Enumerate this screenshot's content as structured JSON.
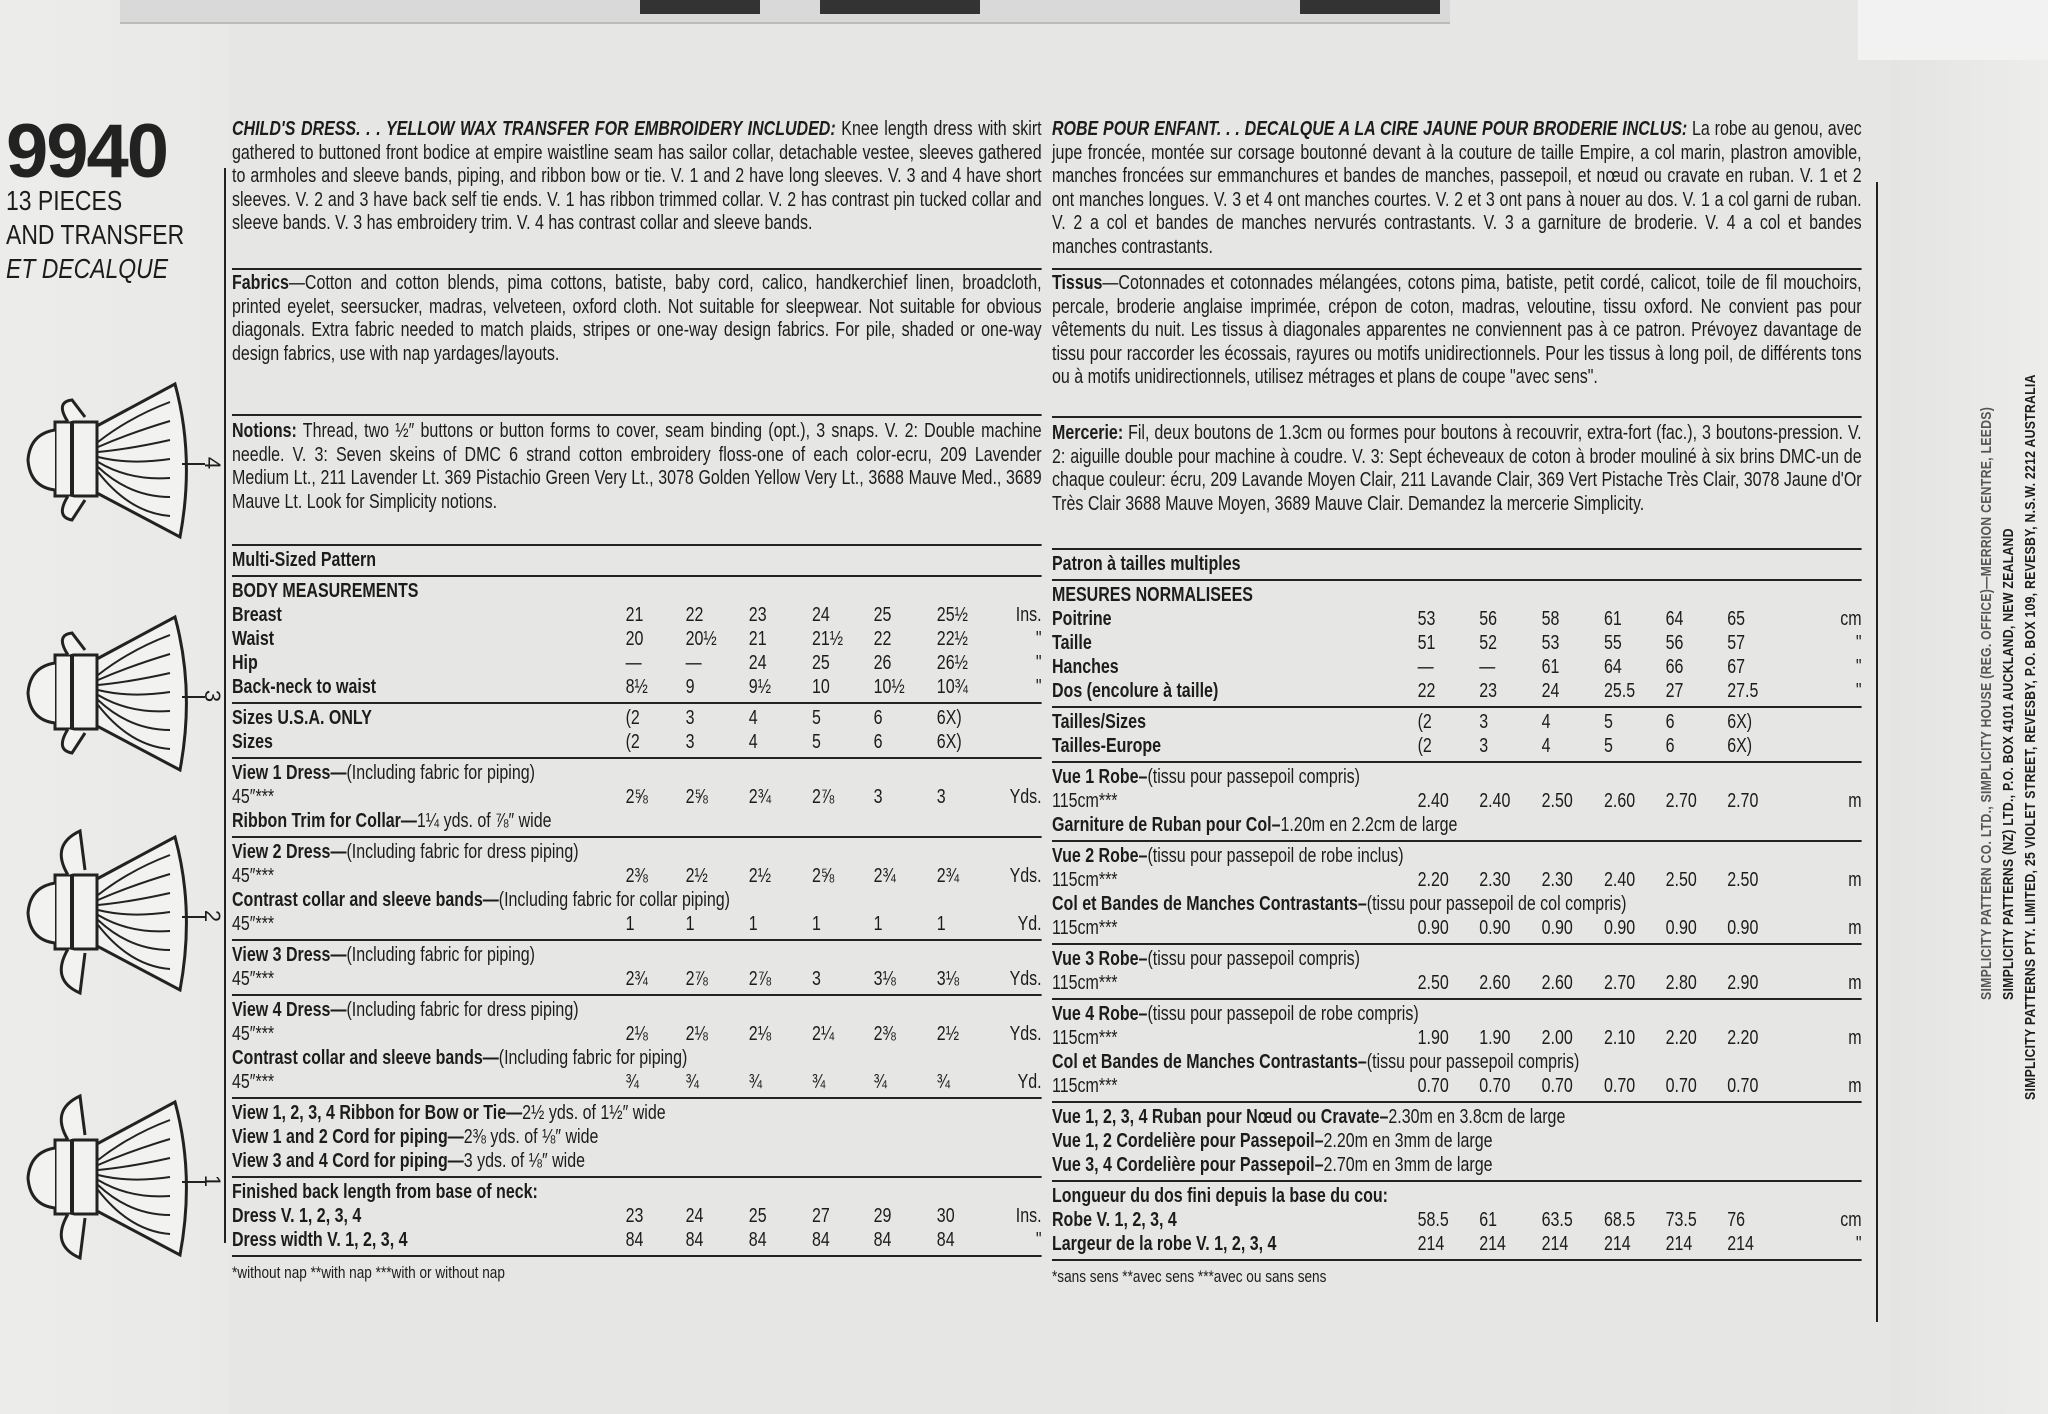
{
  "header": {
    "pattern_number": "9940",
    "pieces": "13 PIECES",
    "transfer": "AND TRANSFER",
    "decalque": "ET DECALQUE"
  },
  "views": [
    "4",
    "3",
    "2",
    "1"
  ],
  "left": {
    "intro": {
      "lead": "CHILD'S DRESS. . . YELLOW WAX TRANSFER FOR EMBROIDERY INCLUDED:",
      "text": " Knee length dress with skirt gathered to buttoned front bodice at empire waistline seam has sailor collar, detachable vestee, sleeves gathered to armholes and sleeve bands, piping, and ribbon bow or tie. V. 1 and 2 have long sleeves. V. 3 and 4 have short sleeves. V. 2 and 3 have back self tie ends. V. 1 has ribbon trimmed collar. V. 2 has contrast pin tucked collar and sleeve bands. V. 3 has embroidery trim. V. 4 has contrast collar and sleeve bands."
    },
    "fabrics": {
      "label": "Fabrics",
      "text": "—Cotton and cotton blends, pima cottons, batiste, baby cord, calico, handkerchief linen, broadcloth, printed eyelet, seersucker, madras, velveteen, oxford cloth. Not suitable for sleepwear. Not suitable for obvious diagonals. Extra fabric needed to match plaids, stripes or one-way design fabrics. For pile, shaded or one-way design fabrics, use with nap yardages/layouts."
    },
    "notions": {
      "label": "Notions:",
      "text": " Thread, two ½″ buttons or button forms to cover, seam binding (opt.), 3 snaps. V. 2: Double machine needle. V. 3: Seven skeins of DMC 6 strand cotton embroidery floss-one of each color-ecru, 209 Lavender Medium Lt., 211 Lavender Lt. 369 Pistachio Green Very Lt., 3078 Golden Yellow Very Lt., 3688 Mauve Med., 3689 Mauve Lt. Look for Simplicity notions."
    },
    "table": {
      "sections": [
        {
          "rows": [
            {
              "label": "Multi-Sized Pattern"
            }
          ]
        },
        {
          "rows": [
            {
              "label": "BODY MEASUREMENTS"
            },
            {
              "label": "Breast",
              "values": [
                "21",
                "22",
                "23",
                "24",
                "25",
                "25½"
              ],
              "unit": "Ins."
            },
            {
              "label": "Waist",
              "values": [
                "20",
                "20½",
                "21",
                "21½",
                "22",
                "22½"
              ],
              "unit": "\""
            },
            {
              "label": "Hip",
              "values": [
                "—",
                "—",
                "24",
                "25",
                "26",
                "26½"
              ],
              "unit": "\""
            },
            {
              "label": "Back-neck to waist",
              "values": [
                "8½",
                "9",
                "9½",
                "10",
                "10½",
                "10¾"
              ],
              "unit": "\""
            }
          ]
        },
        {
          "rows": [
            {
              "label": "Sizes U.S.A. ONLY",
              "values": [
                "(2",
                "3",
                "4",
                "5",
                "6",
                "6X)"
              ]
            },
            {
              "label": "Sizes",
              "values": [
                "(2",
                "3",
                "4",
                "5",
                "6",
                "6X)"
              ]
            }
          ]
        },
        {
          "rows": [
            {
              "label": "View 1 Dress—",
              "note": "(Including fabric for piping)"
            },
            {
              "note": "45″***",
              "values": [
                "2⅝",
                "2⅝",
                "2¾",
                "2⅞",
                "3",
                "3"
              ],
              "unit": "Yds."
            },
            {
              "label": "Ribbon Trim for Collar—",
              "note": "1¼ yds. of ⅞″ wide"
            }
          ]
        },
        {
          "rows": [
            {
              "label": "View 2 Dress—",
              "note": "(Including fabric for dress piping)"
            },
            {
              "note": "45″***",
              "values": [
                "2⅜",
                "2½",
                "2½",
                "2⅝",
                "2¾",
                "2¾"
              ],
              "unit": "Yds."
            },
            {
              "label": "Contrast collar and sleeve bands—",
              "note": "(Including fabric for collar piping)"
            },
            {
              "note": "45″***",
              "values": [
                "1",
                "1",
                "1",
                "1",
                "1",
                "1"
              ],
              "unit": "Yd."
            }
          ]
        },
        {
          "rows": [
            {
              "label": "View 3 Dress—",
              "note": "(Including fabric for piping)"
            },
            {
              "note": "45″***",
              "values": [
                "2¾",
                "2⅞",
                "2⅞",
                "3",
                "3⅛",
                "3⅛"
              ],
              "unit": "Yds."
            }
          ]
        },
        {
          "rows": [
            {
              "label": "View 4 Dress—",
              "note": "(Including fabric for dress piping)"
            },
            {
              "note": "45″***",
              "values": [
                "2⅛",
                "2⅛",
                "2⅛",
                "2¼",
                "2⅜",
                "2½"
              ],
              "unit": "Yds."
            },
            {
              "label": "Contrast collar and sleeve bands—",
              "note": "(Including fabric for piping)"
            },
            {
              "note": "45″***",
              "values": [
                "¾",
                "¾",
                "¾",
                "¾",
                "¾",
                "¾"
              ],
              "unit": "Yd."
            }
          ]
        },
        {
          "rows": [
            {
              "label": "View 1, 2, 3, 4 Ribbon for Bow or Tie—",
              "note": "2½ yds. of 1½″ wide"
            },
            {
              "label": "View 1 and 2 Cord for piping—",
              "note": "2⅜ yds. of ⅛″ wide"
            },
            {
              "label": "View 3 and 4 Cord for piping—",
              "note": "3 yds. of ⅛″ wide"
            }
          ]
        },
        {
          "rows": [
            {
              "label": "Finished back length from base of neck:"
            },
            {
              "label": "Dress V. 1, 2, 3, 4",
              "values": [
                "23",
                "24",
                "25",
                "27",
                "29",
                "30"
              ],
              "unit": "Ins."
            },
            {
              "label": "Dress width V. 1, 2, 3, 4",
              "values": [
                "84",
                "84",
                "84",
                "84",
                "84",
                "84"
              ],
              "unit": "\""
            }
          ]
        }
      ],
      "footnote": "*without nap   **with nap   ***with or without nap"
    }
  },
  "right": {
    "intro": {
      "lead": "ROBE POUR ENFANT. . . DECALQUE A LA CIRE JAUNE POUR BRODERIE INCLUS:",
      "text": " La robe au genou, avec jupe froncée, montée sur corsage boutonné devant à la couture de taille Empire, a col marin, plastron amovible, manches froncées sur emmanchures et bandes de manches, passepoil, et nœud ou cravate en ruban. V. 1 et 2 ont manches longues. V. 3 et 4 ont manches courtes. V. 2 et 3 ont pans à nouer au dos. V. 1 a col garni de ruban. V. 2 a col et bandes de manches nervurés contrastants. V. 3 a garniture de broderie. V. 4 a col et bandes manches contrastants."
    },
    "fabrics": {
      "label": "Tissus",
      "text": "—Cotonnades et cotonnades mélangées, cotons pima, batiste, petit cordé, calicot, toile de fil mouchoirs, percale, broderie anglaise imprimée, crépon de coton, madras, veloutine, tissu oxford. Ne convient pas pour vêtements du nuit. Les tissus à diagonales apparentes ne conviennent pas à ce patron. Prévoyez davantage de tissu pour raccorder les écossais, rayures ou motifs unidirectionnels. Pour les tissus à long poil, de différents tons ou à motifs unidirectionnels, utilisez métrages et plans de coupe \"avec sens\"."
    },
    "notions": {
      "label": "Mercerie:",
      "text": " Fil, deux boutons de 1.3cm ou formes pour boutons à recouvrir, extra-fort (fac.), 3 boutons-pression. V. 2: aiguille double pour machine à coudre. V. 3: Sept écheveaux de coton à broder mouliné à six brins DMC-un de chaque couleur: écru, 209 Lavande Moyen Clair, 211 Lavande Clair, 369 Vert Pistache Très Clair, 3078 Jaune d'Or Très Clair 3688 Mauve Moyen, 3689 Mauve Clair. Demandez la mercerie Simplicity."
    },
    "table": {
      "sections": [
        {
          "rows": [
            {
              "label": "Patron à tailles multiples"
            }
          ]
        },
        {
          "rows": [
            {
              "label": "MESURES NORMALISEES"
            },
            {
              "label": "Poitrine",
              "values": [
                "53",
                "56",
                "58",
                "61",
                "64",
                "65"
              ],
              "unit": "cm"
            },
            {
              "label": "Taille",
              "values": [
                "51",
                "52",
                "53",
                "55",
                "56",
                "57"
              ],
              "unit": "\""
            },
            {
              "label": "Hanches",
              "values": [
                "—",
                "—",
                "61",
                "64",
                "66",
                "67"
              ],
              "unit": "\""
            },
            {
              "label": "Dos (encolure à taille)",
              "values": [
                "22",
                "23",
                "24",
                "25.5",
                "27",
                "27.5"
              ],
              "unit": "\""
            }
          ]
        },
        {
          "rows": [
            {
              "label": "Tailles/Sizes",
              "values": [
                "(2",
                "3",
                "4",
                "5",
                "6",
                "6X)"
              ]
            },
            {
              "label": "Tailles-Europe",
              "values": [
                "(2",
                "3",
                "4",
                "5",
                "6",
                "6X)"
              ]
            }
          ]
        },
        {
          "rows": [
            {
              "label": "Vue 1 Robe–",
              "note": "(tissu pour passepoil compris)"
            },
            {
              "note": "115cm***",
              "values": [
                "2.40",
                "2.40",
                "2.50",
                "2.60",
                "2.70",
                "2.70"
              ],
              "unit": "m"
            },
            {
              "label": "Garniture de Ruban pour Col–",
              "note": "1.20m en 2.2cm de large"
            }
          ]
        },
        {
          "rows": [
            {
              "label": "Vue 2 Robe–",
              "note": "(tissu pour passepoil de robe inclus)"
            },
            {
              "note": "115cm***",
              "values": [
                "2.20",
                "2.30",
                "2.30",
                "2.40",
                "2.50",
                "2.50"
              ],
              "unit": "m"
            },
            {
              "label": "Col et Bandes de Manches Contrastants–",
              "note": "(tissu pour passepoil de col compris)"
            },
            {
              "note": "115cm***",
              "values": [
                "0.90",
                "0.90",
                "0.90",
                "0.90",
                "0.90",
                "0.90"
              ],
              "unit": "m"
            }
          ]
        },
        {
          "rows": [
            {
              "label": "Vue 3 Robe–",
              "note": "(tissu pour passepoil compris)"
            },
            {
              "note": "115cm***",
              "values": [
                "2.50",
                "2.60",
                "2.60",
                "2.70",
                "2.80",
                "2.90"
              ],
              "unit": "m"
            }
          ]
        },
        {
          "rows": [
            {
              "label": "Vue 4 Robe–",
              "note": "(tissu pour passepoil de robe compris)"
            },
            {
              "note": "115cm***",
              "values": [
                "1.90",
                "1.90",
                "2.00",
                "2.10",
                "2.20",
                "2.20"
              ],
              "unit": "m"
            },
            {
              "label": "Col et Bandes de Manches Contrastants–",
              "note": "(tissu pour passepoil compris)"
            },
            {
              "note": "115cm***",
              "values": [
                "0.70",
                "0.70",
                "0.70",
                "0.70",
                "0.70",
                "0.70"
              ],
              "unit": "m"
            }
          ]
        },
        {
          "rows": [
            {
              "label": "Vue 1, 2, 3, 4 Ruban pour Nœud ou Cravate–",
              "note": "2.30m en 3.8cm de large"
            },
            {
              "label": "Vue 1, 2 Cordelière pour Passepoil–",
              "note": "2.20m en 3mm de large"
            },
            {
              "label": "Vue 3, 4 Cordelière pour Passepoil–",
              "note": "2.70m en 3mm de large"
            }
          ]
        },
        {
          "rows": [
            {
              "label": "Longueur du dos fini depuis la base du cou:"
            },
            {
              "label": "Robe V. 1, 2, 3, 4",
              "values": [
                "58.5",
                "61",
                "63.5",
                "68.5",
                "73.5",
                "76"
              ],
              "unit": "cm"
            },
            {
              "label": "Largeur de la robe V. 1, 2, 3, 4",
              "values": [
                "214",
                "214",
                "214",
                "214",
                "214",
                "214"
              ],
              "unit": "\""
            }
          ]
        }
      ],
      "footnote": "*sans sens   **avec sens   ***avec ou sans sens"
    }
  },
  "distributors": [
    "SIMPLICITY PATTERN CO. LTD., SIMPLICITY HOUSE (REG. OFFICE)—MERRION CENTRE, LEEDS)",
    "SIMPLICITY PATTERNS (NZ) LTD., P.O. BOX 4101 AUCKLAND, NEW ZEALAND",
    "SIMPLICITY PATTERNS PTY. LIMITED, 25 VIOLET STREET, REVESBY, P.O. BOX 109, REVESBY, N.S.W. 2212 AUSTRALIA"
  ]
}
